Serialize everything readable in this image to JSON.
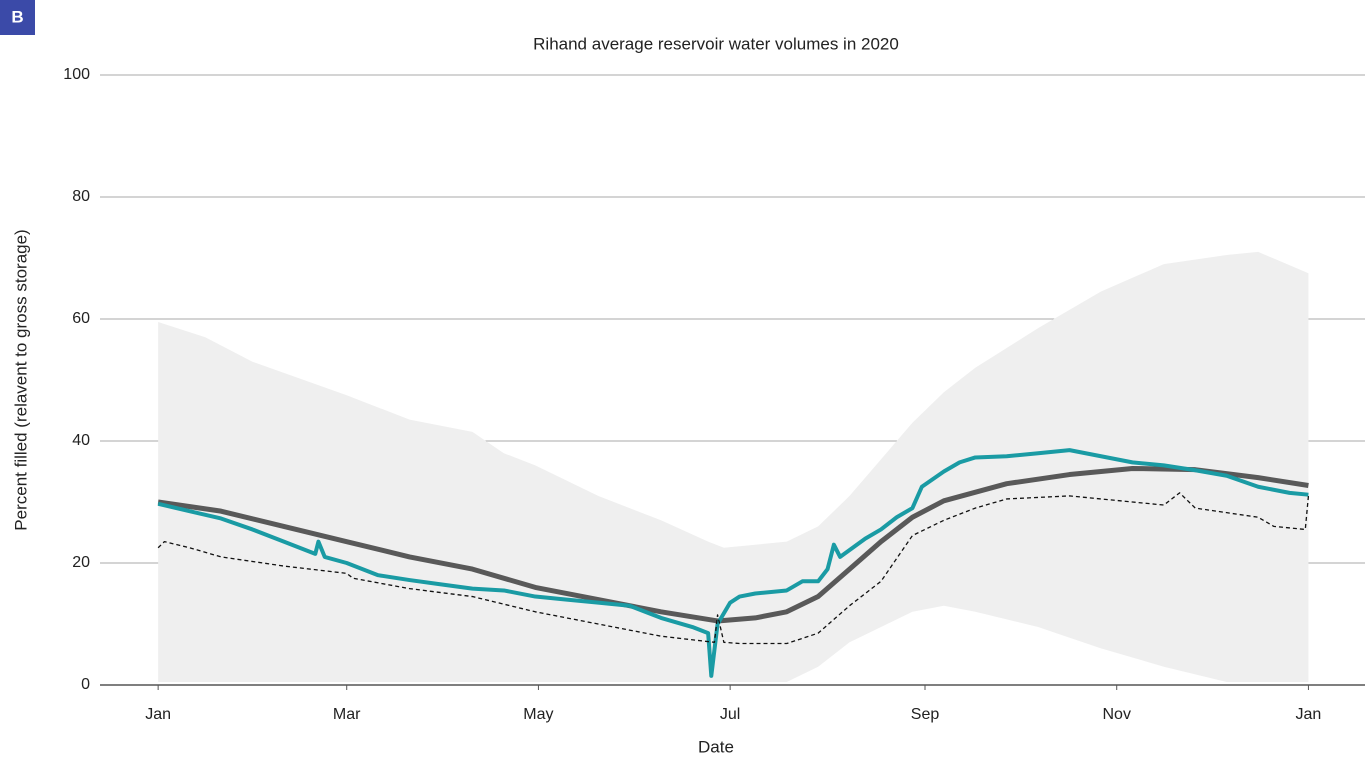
{
  "chart_data": {
    "type": "line",
    "panel_label": "B",
    "title": "Rihand average reservoir water volumes in 2020",
    "xlabel": "Date",
    "ylabel": "Percent filled (relavent to gross storage)",
    "xlim": [
      -18.5,
      384
    ],
    "xticks": [
      {
        "value": 0,
        "label": "Jan"
      },
      {
        "value": 60,
        "label": "Mar"
      },
      {
        "value": 121,
        "label": "May"
      },
      {
        "value": 182,
        "label": "Jul"
      },
      {
        "value": 244,
        "label": "Sep"
      },
      {
        "value": 305,
        "label": "Nov"
      },
      {
        "value": 366,
        "label": "Jan"
      }
    ],
    "ylim": [
      0,
      100
    ],
    "yticks": [
      0,
      20,
      40,
      60,
      80,
      100
    ],
    "grid": true,
    "band": {
      "color": "#efefef",
      "x": [
        0,
        15,
        30,
        60,
        80,
        100,
        110,
        120,
        140,
        160,
        175,
        180,
        200,
        210,
        220,
        240,
        250,
        260,
        280,
        300,
        320,
        340,
        350,
        366
      ],
      "upper": [
        59.5,
        57,
        53,
        47.5,
        43.5,
        41.5,
        38,
        36,
        31,
        27,
        23.5,
        22.5,
        23.5,
        26,
        31,
        43,
        48,
        52,
        58.5,
        64.5,
        69,
        70.5,
        71,
        67.5
      ],
      "lower": [
        0.5,
        0.5,
        0.5,
        0.5,
        0.5,
        0.5,
        0.5,
        0.5,
        0.5,
        0.5,
        0.5,
        0.5,
        0.5,
        3,
        7,
        12,
        13,
        12,
        9.5,
        6,
        3,
        0.5,
        0.5,
        0.5
      ]
    },
    "series": [
      {
        "color": "#1a9ba4",
        "dashed": false,
        "x": [
          0,
          10,
          20,
          30,
          40,
          50,
          51,
          53,
          60,
          70,
          80,
          90,
          100,
          110,
          120,
          130,
          140,
          150,
          160,
          170,
          175,
          176,
          178,
          182,
          185,
          190,
          200,
          205,
          210,
          213,
          215,
          217,
          225,
          230,
          235,
          240,
          243,
          250,
          255,
          260,
          270,
          280,
          290,
          300,
          310,
          320,
          330,
          340,
          350,
          360,
          366
        ],
        "values": [
          29.7,
          28.5,
          27.3,
          25.5,
          23.5,
          21.5,
          23.5,
          21,
          20,
          18,
          17.2,
          16.5,
          15.8,
          15.5,
          14.5,
          14,
          13.5,
          13,
          11,
          9.5,
          8.5,
          1.5,
          10,
          13.5,
          14.5,
          15,
          15.5,
          17,
          17,
          19,
          23,
          21,
          24,
          25.5,
          27.5,
          29,
          32.5,
          35,
          36.5,
          37.3,
          37.5,
          38,
          38.5,
          37.5,
          36.5,
          36,
          35.2,
          34.3,
          32.5,
          31.5,
          31.2
        ]
      },
      {
        "color": "#595959",
        "dashed": false,
        "x": [
          0,
          20,
          40,
          60,
          80,
          100,
          120,
          140,
          160,
          178,
          190,
          200,
          210,
          220,
          230,
          240,
          250,
          270,
          290,
          310,
          330,
          350,
          366
        ],
        "values": [
          30,
          28.5,
          26,
          23.5,
          21,
          19,
          16,
          14,
          12,
          10.5,
          11,
          12,
          14.5,
          19,
          23.5,
          27.5,
          30.2,
          33,
          34.5,
          35.5,
          35.3,
          34,
          32.7
        ]
      },
      {
        "color": "#111111",
        "dashed": true,
        "x": [
          0,
          2,
          10,
          20,
          40,
          60,
          62,
          80,
          100,
          120,
          140,
          160,
          177,
          178,
          180,
          185,
          200,
          210,
          220,
          230,
          240,
          250,
          260,
          270,
          290,
          310,
          320,
          325,
          330,
          350,
          355,
          365,
          366
        ],
        "values": [
          22.5,
          23.5,
          22.5,
          21,
          19.5,
          18.3,
          17.5,
          15.8,
          14.5,
          12,
          10,
          8,
          7,
          11.5,
          7,
          6.8,
          6.8,
          8.5,
          13,
          17,
          24.5,
          27,
          29,
          30.5,
          31,
          30,
          29.5,
          31.5,
          29,
          27.5,
          26,
          25.5,
          31
        ]
      }
    ]
  }
}
